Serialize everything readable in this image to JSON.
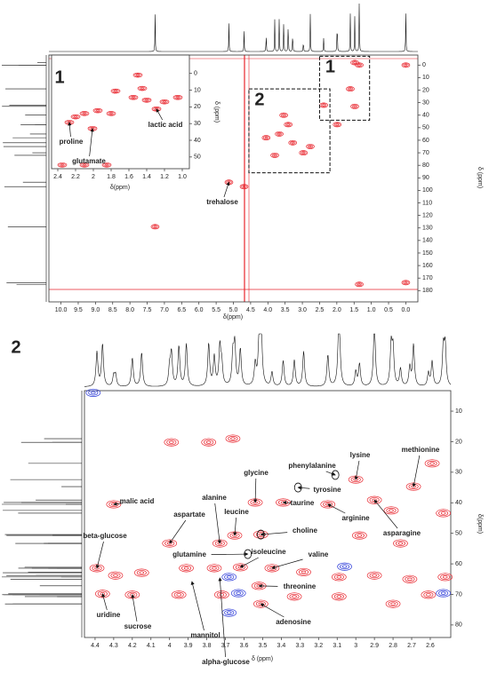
{
  "chart_data": [
    {
      "type": "hsqc",
      "panel": "main",
      "xlabel": "δ(ppm)",
      "ylabel": "δ (ppm)",
      "xlim": [
        10.35,
        -0.35
      ],
      "ylim": [
        -8,
        189
      ],
      "xticks": [
        {
          "value": 10,
          "label": "10.0"
        },
        9.5,
        {
          "value": 9,
          "label": "9.0"
        },
        8.5,
        {
          "value": 8,
          "label": "8.0"
        },
        7.5,
        {
          "value": 7,
          "label": "7.0"
        },
        6.5,
        {
          "value": 6,
          "label": "6.0"
        },
        5.5,
        {
          "value": 5,
          "label": "5.0"
        },
        4.5,
        {
          "value": 4,
          "label": "4.0"
        },
        3.5,
        {
          "value": 3,
          "label": "3.0"
        },
        2.5,
        {
          "value": 2,
          "label": "2.0"
        },
        1.5,
        {
          "value": 1,
          "label": "1.0"
        },
        0.5,
        {
          "value": 0,
          "label": "0.0"
        }
      ],
      "yticks": [
        0,
        10,
        20,
        30,
        40,
        50,
        60,
        70,
        80,
        90,
        100,
        110,
        120,
        130,
        140,
        150,
        160,
        170,
        180
      ],
      "regions": [
        {
          "label": "1",
          "xlim": [
            2.5,
            1.05
          ],
          "ylim": [
            -7,
            44
          ]
        },
        {
          "label": "2",
          "xlim": [
            4.55,
            2.2
          ],
          "ylim": [
            19,
            86
          ]
        }
      ],
      "peaks": {
        "color": "#e8252d",
        "x": [
          1.48,
          1.35,
          1.61,
          1.48,
          2.38,
          3.54,
          3.67,
          4.05,
          3.28,
          2.77,
          3.8,
          2.97,
          5.13,
          7.27,
          0.0,
          0.0,
          3.41,
          1.99,
          1.35,
          4.69
        ],
        "y": [
          -2,
          0,
          19,
          33,
          32,
          40,
          55,
          58,
          62,
          65,
          72,
          70,
          93.5,
          129,
          0,
          173.6,
          47.5,
          47.5,
          175,
          97
        ]
      },
      "annotations": [
        {
          "label": "trehalose",
          "x": 5.13,
          "y": 93.5
        }
      ]
    },
    {
      "type": "hsqc",
      "panel": "inset",
      "label": "1",
      "xlabel": "δ(ppm)",
      "ylabel": "δ (ppm)",
      "xlim": [
        2.47,
        0.92
      ],
      "ylim": [
        -11,
        57
      ],
      "xticks": [
        2.4,
        2.2,
        2.0,
        1.8,
        1.6,
        1.4,
        1.2,
        {
          "value": 1,
          "label": "1.0"
        }
      ],
      "yticks": [
        0,
        10,
        20,
        30,
        40,
        50
      ],
      "peaks": {
        "color": "#e8252d",
        "x": [
          2.27,
          2.01,
          1.29,
          1.75,
          1.55,
          1.5,
          1.45,
          2.1,
          1.95,
          1.8,
          2.2,
          1.4,
          1.2,
          1.05,
          2.35,
          2.1,
          1.85
        ],
        "y": [
          29.3,
          33,
          21.3,
          10.6,
          14.4,
          1,
          9,
          24,
          22.3,
          24,
          26,
          16,
          17,
          14.4,
          54.8,
          54.8,
          54.8
        ]
      },
      "annotations": [
        {
          "label": "proline",
          "x": 2.27,
          "y": 29.3
        },
        {
          "label": "glutamate",
          "x": 2.01,
          "y": 33
        },
        {
          "label": "lactic acid",
          "x": 1.29,
          "y": 21.3
        }
      ]
    },
    {
      "type": "hsqc",
      "panel": "zoom",
      "label": "2",
      "xlabel": "δ (ppm)",
      "ylabel": "δ(ppm)",
      "xlim": [
        4.457,
        2.49
      ],
      "ylim": [
        3.3,
        84.1
      ],
      "xticks": [
        4.4,
        4.3,
        4.2,
        4.1,
        4.0,
        3.9,
        3.8,
        3.7,
        3.6,
        3.5,
        3.4,
        3.3,
        3.2,
        3.1,
        3.0,
        2.9,
        2.8,
        2.7,
        2.6
      ],
      "yticks": [
        10,
        20,
        30,
        40,
        50,
        60,
        70,
        80
      ],
      "peaks": {
        "color": "#e8252d",
        "x": [
          4.3,
          4.39,
          4.36,
          4.2,
          4.0,
          3.73,
          3.65,
          3.54,
          3.39,
          3.51,
          3.62,
          3.45,
          3.52,
          3.51,
          3.15,
          3.0,
          2.9,
          2.69,
          2.59,
          2.98,
          2.81,
          2.53,
          2.76,
          3.76,
          3.91,
          4.15,
          4.29,
          3.28,
          3.09,
          2.9,
          2.71,
          2.52,
          3.95,
          3.72,
          3.33,
          3.09,
          2.8,
          2.61,
          3.99,
          3.79,
          3.66
        ],
        "y": [
          40.5,
          61.4,
          69.8,
          70.1,
          53.3,
          53.3,
          50.7,
          39.9,
          39.9,
          50.4,
          61.1,
          61.4,
          67.2,
          73.1,
          40.5,
          32.4,
          39.1,
          34.7,
          27.1,
          50.7,
          42.5,
          43.4,
          53.3,
          61.4,
          61.4,
          62.9,
          63.8,
          62.7,
          64.3,
          63.8,
          65,
          64.3,
          70.1,
          70.1,
          70.7,
          70.7,
          73.1,
          70.1,
          20.2,
          20.2,
          19
        ]
      },
      "negative_peaks": {
        "color": "#2b3ad8",
        "x": [
          4.41,
          3.68,
          3.63,
          3.06,
          2.53,
          3.68
        ],
        "y": [
          4,
          64.3,
          69.6,
          60.9,
          69.6,
          76
        ]
      },
      "annotations": [
        {
          "label": "malic acid",
          "x": 4.3,
          "y": 40.5
        },
        {
          "label": "beta-glucose",
          "x": 4.39,
          "y": 61.4
        },
        {
          "label": "uridine",
          "x": 4.36,
          "y": 69.8
        },
        {
          "label": "sucrose",
          "x": 4.2,
          "y": 70.1
        },
        {
          "label": "aspartate",
          "x": 4.0,
          "y": 53.3
        },
        {
          "label": "alanine",
          "x": 3.73,
          "y": 53.3
        },
        {
          "label": "leucine",
          "x": 3.65,
          "y": 50.7
        },
        {
          "label": "glutamine",
          "x": 3.58,
          "y": 56.8,
          "circle": true
        },
        {
          "label": "mannitol",
          "x": 3.88,
          "y": 65.8
        },
        {
          "label": "alpha-glucose",
          "x": 3.73,
          "y": 64.6
        },
        {
          "label": "glycine",
          "x": 3.54,
          "y": 39.9
        },
        {
          "label": "taurine",
          "x": 3.39,
          "y": 39.9
        },
        {
          "label": "choline",
          "x": 3.51,
          "y": 50.4,
          "circle": true
        },
        {
          "label": "isoleucine",
          "x": 3.62,
          "y": 61.1
        },
        {
          "label": "valine",
          "x": 3.45,
          "y": 61.4
        },
        {
          "label": "threonine",
          "x": 3.52,
          "y": 67.2
        },
        {
          "label": "adenosine",
          "x": 3.51,
          "y": 73.1
        },
        {
          "label": "phenylalanine",
          "x": 3.11,
          "y": 30.9,
          "circle": true
        },
        {
          "label": "tyrosine",
          "x": 3.31,
          "y": 35,
          "circle": true
        },
        {
          "label": "lysine",
          "x": 3.0,
          "y": 32.4
        },
        {
          "label": "arginine",
          "x": 3.15,
          "y": 40.5
        },
        {
          "label": "asparagine",
          "x": 2.9,
          "y": 39.1
        },
        {
          "label": "methionine",
          "x": 2.69,
          "y": 34.7
        }
      ]
    }
  ]
}
